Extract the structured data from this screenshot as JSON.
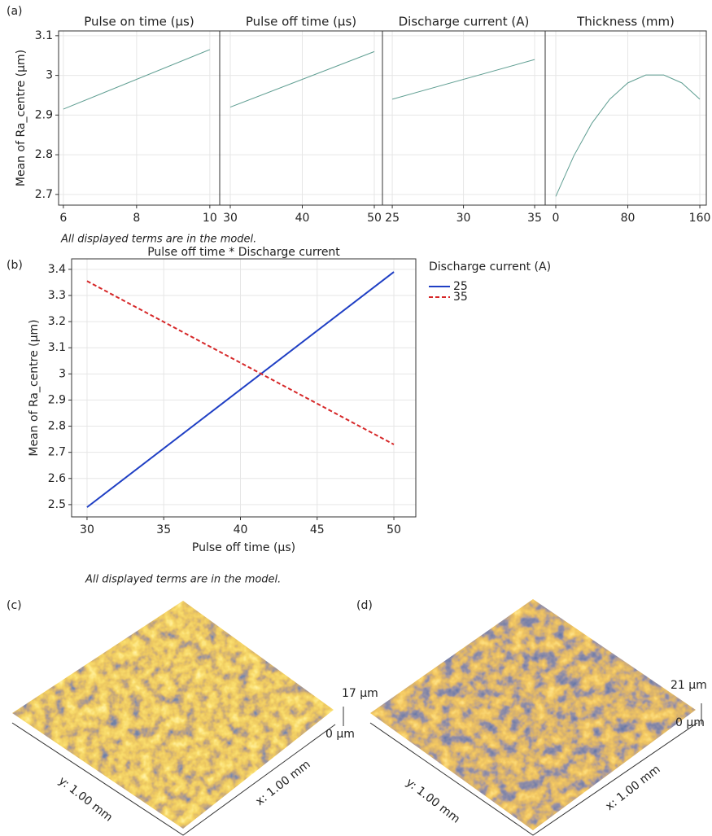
{
  "panel_labels": [
    "(a)",
    "(b)"
  ],
  "notes": [
    "All displayed terms are in the model.",
    "All displayed terms are in the model."
  ],
  "chart_data": [
    {
      "type": "line",
      "title": "Pulse on time (µs)",
      "ylabel": "Mean of Ra_centre (µm)",
      "x": [
        6,
        10
      ],
      "values": [
        2.915,
        3.065
      ],
      "color": "#5f9e92",
      "xlim": [
        5.87,
        10.27
      ],
      "xticks": [
        6,
        8,
        10
      ],
      "ylim": [
        2.673,
        3.112
      ],
      "yticks": [
        2.7,
        2.8,
        2.9,
        3.0,
        3.1
      ],
      "grid": true
    },
    {
      "type": "line",
      "title": "Pulse off time (µs)",
      "x": [
        30,
        50
      ],
      "values": [
        2.92,
        3.06
      ],
      "color": "#5f9e92",
      "xlim": [
        28.53,
        51.13
      ],
      "xticks": [
        30,
        40,
        50
      ],
      "ylim": [
        2.673,
        3.112
      ],
      "yticks": [
        2.7,
        2.8,
        2.9,
        3.0,
        3.1
      ],
      "grid": true
    },
    {
      "type": "line",
      "title": "Discharge current (A)",
      "x": [
        25,
        35
      ],
      "values": [
        2.94,
        3.04
      ],
      "color": "#5f9e92",
      "xlim": [
        24.31,
        35.74
      ],
      "xticks": [
        25,
        30,
        35
      ],
      "ylim": [
        2.673,
        3.112
      ],
      "yticks": [
        2.7,
        2.8,
        2.9,
        3.0,
        3.1
      ],
      "grid": true
    },
    {
      "type": "line",
      "title": "Thickness (mm)",
      "x": [
        0,
        20,
        40,
        60,
        80,
        100,
        120,
        140,
        160
      ],
      "values": [
        2.695,
        2.797,
        2.879,
        2.94,
        2.981,
        3.001,
        3.001,
        2.981,
        2.94
      ],
      "color": "#5f9e92",
      "xlim": [
        -11.75,
        167.2
      ],
      "xticks": [
        0,
        80,
        160
      ],
      "ylim": [
        2.673,
        3.112
      ],
      "yticks": [
        2.7,
        2.8,
        2.9,
        3.0,
        3.1
      ],
      "grid": true
    },
    {
      "type": "line",
      "title": "Pulse off time * Discharge current",
      "xlabel": "Pulse off time (µs)",
      "ylabel": "Mean of Ra_centre (µm)",
      "legend_title": "Discharge current (A)",
      "x": [
        30,
        50
      ],
      "series": [
        {
          "name": "25",
          "color": "#1f3fc4",
          "style": "solid",
          "values": [
            2.49,
            3.39
          ]
        },
        {
          "name": "35",
          "color": "#d62728",
          "style": "dashed",
          "values": [
            3.355,
            2.73
          ]
        }
      ],
      "xlim": [
        28.995,
        51.43
      ],
      "xticks": [
        30,
        35,
        40,
        45,
        50
      ],
      "ylim": [
        2.453,
        3.44
      ],
      "yticks": [
        2.5,
        2.6,
        2.7,
        2.8,
        2.9,
        3.0,
        3.1,
        3.2,
        3.3,
        3.4
      ],
      "grid": true
    }
  ],
  "surfaces": [
    {
      "label": "(c)",
      "z_top": "17 µm",
      "z_bottom": "0 µm",
      "y_axis": "y: 1.00 mm",
      "x_axis": "x: 1.00 mm"
    },
    {
      "label": "(d)",
      "z_top": "21 µm",
      "z_bottom": "0 µm",
      "y_axis": "y: 1.00 mm",
      "x_axis": "x: 1.00 mm"
    }
  ]
}
